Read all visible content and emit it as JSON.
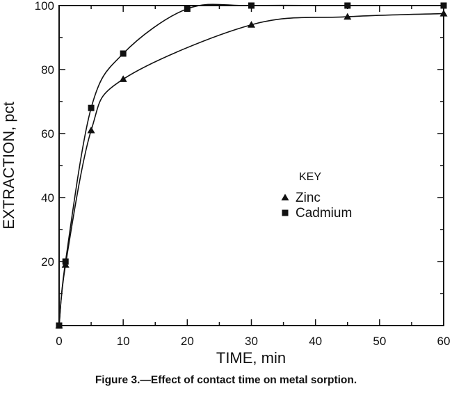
{
  "caption": "Figure 3.—Effect of contact time on metal sorption.",
  "chart_data": {
    "type": "line",
    "xlabel": "TIME,  min",
    "ylabel": "EXTRACTION,  pct",
    "xlim": [
      0,
      60
    ],
    "ylim": [
      0,
      100
    ],
    "x_ticks": [
      0,
      10,
      20,
      30,
      40,
      50,
      60
    ],
    "y_ticks": [
      20,
      40,
      60,
      80,
      100
    ],
    "legend": {
      "title": "KEY",
      "placement": "center-right"
    },
    "series": [
      {
        "name": "Zinc",
        "marker": "triangle",
        "color": "#111111",
        "x": [
          0,
          1,
          5,
          10,
          30,
          45,
          60
        ],
        "y": [
          0,
          19,
          61,
          77,
          94,
          96.5,
          97.5
        ]
      },
      {
        "name": "Cadmium",
        "marker": "square",
        "color": "#111111",
        "x": [
          0,
          1,
          5,
          10,
          20,
          30,
          45,
          60
        ],
        "y": [
          0,
          20,
          68,
          85,
          99,
          100,
          100,
          100
        ]
      }
    ]
  }
}
